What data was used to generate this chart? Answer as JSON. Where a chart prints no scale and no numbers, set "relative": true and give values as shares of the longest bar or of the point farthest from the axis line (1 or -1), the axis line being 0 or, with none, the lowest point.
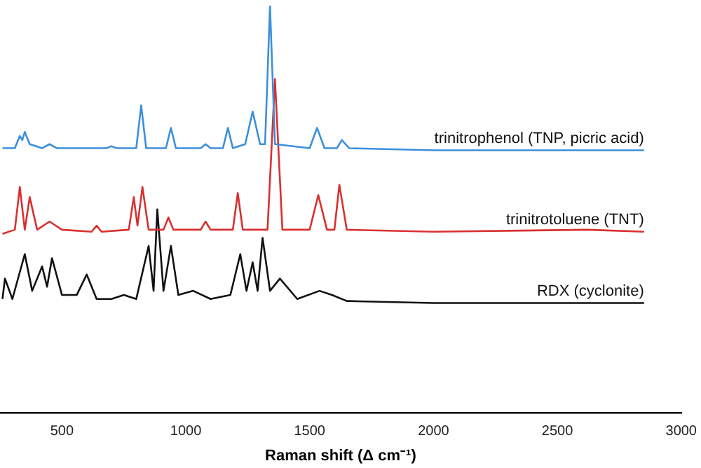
{
  "chart_data": {
    "type": "line",
    "xlabel": "Raman shift (Δ cm⁻¹)",
    "relative": true,
    "xlim": [
      250,
      3000
    ],
    "xticks": [
      500,
      1000,
      1500,
      2000,
      2500,
      3000
    ],
    "legend": false,
    "grid": false,
    "marker": "none",
    "line_style": "solid",
    "series": [
      {
        "name": "trinitrophenol (TNP, picric acid)",
        "color": "#3c8fdc",
        "x": [
          260,
          310,
          330,
          340,
          350,
          370,
          420,
          450,
          480,
          680,
          700,
          720,
          800,
          820,
          840,
          920,
          940,
          960,
          1060,
          1080,
          1100,
          1150,
          1170,
          1190,
          1240,
          1270,
          1300,
          1320,
          1340,
          1360,
          1500,
          1530,
          1560,
          1610,
          1630,
          1660,
          2000,
          2850
        ],
        "values": [
          0.65,
          0.65,
          0.68,
          0.67,
          0.69,
          0.66,
          0.65,
          0.66,
          0.65,
          0.65,
          0.655,
          0.65,
          0.65,
          0.755,
          0.65,
          0.65,
          0.7,
          0.65,
          0.65,
          0.66,
          0.65,
          0.65,
          0.7,
          0.65,
          0.66,
          0.74,
          0.66,
          0.66,
          1.0,
          0.66,
          0.65,
          0.7,
          0.65,
          0.65,
          0.67,
          0.65,
          0.645,
          0.645
        ]
      },
      {
        "name": "trinitrotoluene (TNT)",
        "color": "#d93030",
        "x": [
          260,
          310,
          330,
          350,
          370,
          400,
          450,
          500,
          620,
          640,
          660,
          770,
          790,
          805,
          825,
          850,
          910,
          930,
          950,
          1060,
          1080,
          1100,
          1190,
          1210,
          1230,
          1330,
          1360,
          1390,
          1500,
          1535,
          1570,
          1600,
          1620,
          1650,
          2000,
          2620,
          2850
        ],
        "values": [
          0.44,
          0.45,
          0.555,
          0.45,
          0.53,
          0.45,
          0.47,
          0.45,
          0.445,
          0.46,
          0.445,
          0.45,
          0.53,
          0.46,
          0.555,
          0.45,
          0.45,
          0.48,
          0.45,
          0.45,
          0.47,
          0.45,
          0.45,
          0.54,
          0.45,
          0.45,
          0.82,
          0.45,
          0.45,
          0.535,
          0.45,
          0.45,
          0.56,
          0.45,
          0.445,
          0.45,
          0.445
        ]
      },
      {
        "name": "RDX (cyclonite)",
        "color": "#111111",
        "x": [
          260,
          270,
          300,
          350,
          380,
          420,
          440,
          460,
          500,
          560,
          600,
          640,
          700,
          750,
          800,
          850,
          870,
          885,
          910,
          940,
          970,
          1030,
          1100,
          1180,
          1220,
          1245,
          1270,
          1290,
          1310,
          1340,
          1380,
          1450,
          1540,
          1590,
          1650,
          2000,
          2850
        ],
        "values": [
          0.28,
          0.33,
          0.28,
          0.39,
          0.3,
          0.36,
          0.31,
          0.38,
          0.29,
          0.29,
          0.34,
          0.28,
          0.28,
          0.29,
          0.28,
          0.41,
          0.3,
          0.5,
          0.3,
          0.41,
          0.29,
          0.3,
          0.28,
          0.29,
          0.39,
          0.3,
          0.37,
          0.3,
          0.43,
          0.3,
          0.33,
          0.28,
          0.3,
          0.29,
          0.275,
          0.27,
          0.27
        ]
      }
    ]
  }
}
